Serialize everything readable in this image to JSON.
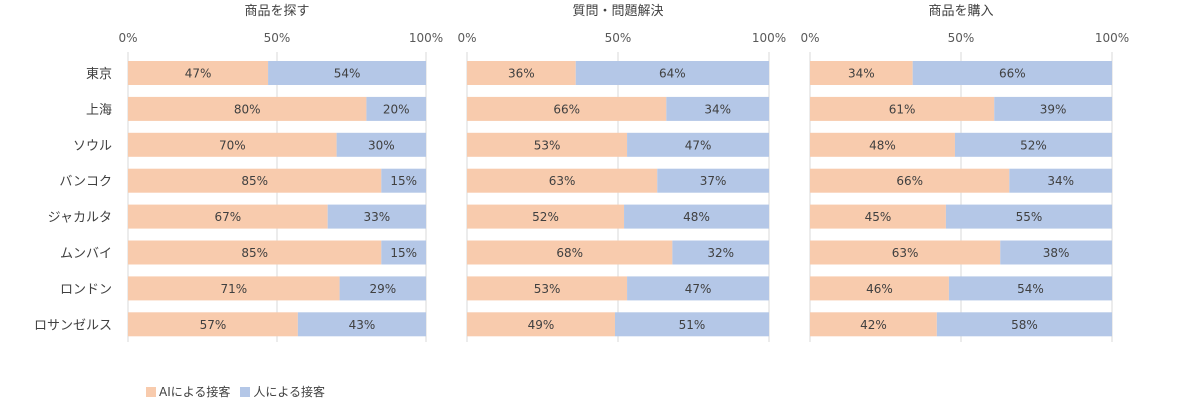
{
  "colors": {
    "ai": "#F8CBAD",
    "human": "#B4C7E7",
    "axis": "#D9D9D9",
    "text": "#595959"
  },
  "legend": {
    "ai_label": "AIによる接客",
    "human_label": "人による接客"
  },
  "chart_data": [
    {
      "type": "bar",
      "title": "商品を探す",
      "categories": [
        "東京",
        "上海",
        "ソウル",
        "バンコク",
        "ジャカルタ",
        "ムンバイ",
        "ロンドン",
        "ロサンゼルス"
      ],
      "series": [
        {
          "name": "AIによる接客",
          "values": [
            47,
            80,
            70,
            85,
            67,
            85,
            71,
            57
          ]
        },
        {
          "name": "人による接客",
          "values": [
            54,
            20,
            30,
            15,
            33,
            15,
            29,
            43
          ]
        }
      ],
      "xlim": [
        0,
        100
      ],
      "ticks": [
        "0%",
        "50%",
        "100%"
      ],
      "stacked": true
    },
    {
      "type": "bar",
      "title": "質問・問題解決",
      "categories": [
        "東京",
        "上海",
        "ソウル",
        "バンコク",
        "ジャカルタ",
        "ムンバイ",
        "ロンドン",
        "ロサンゼルス"
      ],
      "series": [
        {
          "name": "AIによる接客",
          "values": [
            36,
            66,
            53,
            63,
            52,
            68,
            53,
            49
          ]
        },
        {
          "name": "人による接客",
          "values": [
            64,
            34,
            47,
            37,
            48,
            32,
            47,
            51
          ]
        }
      ],
      "xlim": [
        0,
        100
      ],
      "ticks": [
        "0%",
        "50%",
        "100%"
      ],
      "stacked": true
    },
    {
      "type": "bar",
      "title": "商品を購入",
      "categories": [
        "東京",
        "上海",
        "ソウル",
        "バンコク",
        "ジャカルタ",
        "ムンバイ",
        "ロンドン",
        "ロサンゼルス"
      ],
      "series": [
        {
          "name": "AIによる接客",
          "values": [
            34,
            61,
            48,
            66,
            45,
            63,
            46,
            42
          ]
        },
        {
          "name": "人による接客",
          "values": [
            66,
            39,
            52,
            34,
            55,
            38,
            54,
            58
          ]
        }
      ],
      "xlim": [
        0,
        100
      ],
      "ticks": [
        "0%",
        "50%",
        "100%"
      ],
      "stacked": true
    }
  ]
}
